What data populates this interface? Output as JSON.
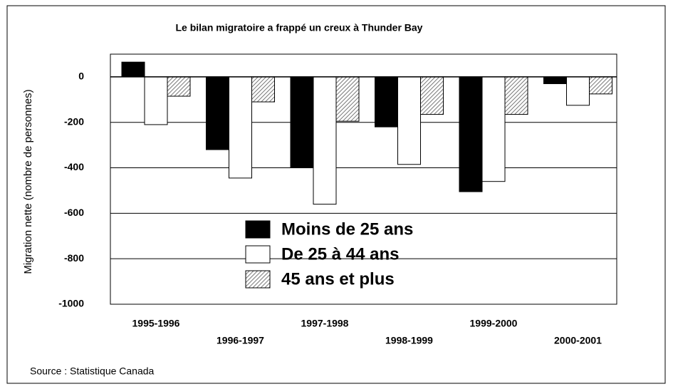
{
  "chart_data": {
    "type": "bar",
    "title": "Le bilan migratoire a frappé un creux à Thunder Bay",
    "y_label": "Migration nette (nombre de personnes)",
    "source": "Source : Statistique Canada",
    "categories": [
      "1995-1996",
      "1996-1997",
      "1997-1998",
      "1998-1999",
      "1999-2000",
      "2000-2001"
    ],
    "series": [
      {
        "name": "Moins de 25 ans",
        "color": "#000000",
        "values": [
          65,
          -320,
          -400,
          -220,
          -505,
          -30
        ]
      },
      {
        "name": "De 25 à 44 ans",
        "color": "#ffffff",
        "values": [
          -210,
          -445,
          -560,
          -385,
          -460,
          -125
        ]
      },
      {
        "name": "45 ans et plus",
        "color": "#777777",
        "pattern": "hatch",
        "values": [
          -85,
          -110,
          -195,
          -165,
          -165,
          -75
        ]
      }
    ],
    "ylim": [
      -1000,
      100
    ],
    "yticks": [
      0,
      -200,
      -400,
      -600,
      -800,
      -1000
    ],
    "grid": true
  }
}
